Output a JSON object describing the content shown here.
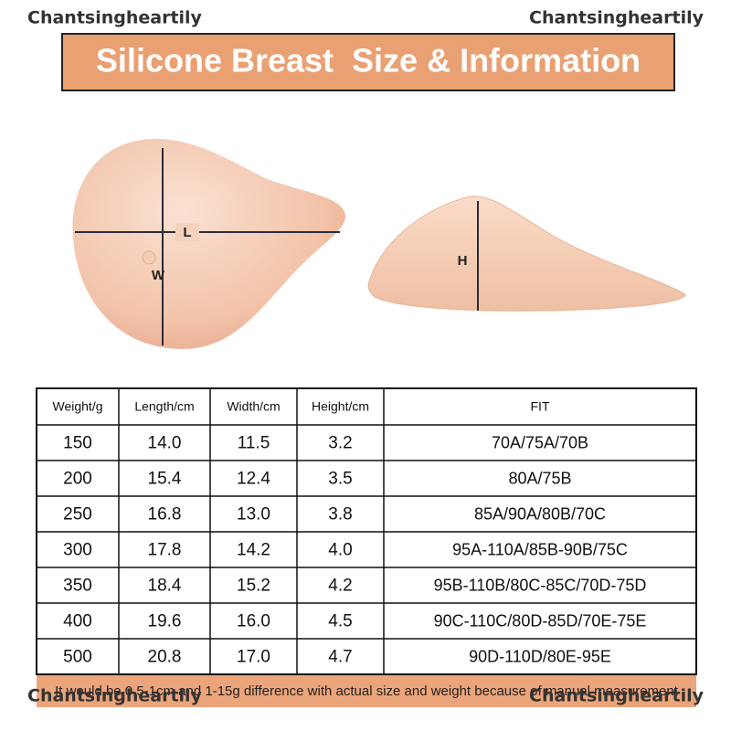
{
  "watermarks": [
    "Chantsingheartily",
    "Chantsingheartily",
    "Chantsingheartily",
    "Chantsingheartily"
  ],
  "header": {
    "title": "Silicone Breast  Size & Information"
  },
  "diagram": {
    "labels": [
      "L",
      "W",
      "H"
    ]
  },
  "table": {
    "columns": [
      "Weight/g",
      "Length/cm",
      "Width/cm",
      "Height/cm",
      "FIT"
    ],
    "rows": [
      [
        "150",
        "14.0",
        "11.5",
        "3.2",
        "70A/75A/70B"
      ],
      [
        "200",
        "15.4",
        "12.4",
        "3.5",
        "80A/75B"
      ],
      [
        "250",
        "16.8",
        "13.0",
        "3.8",
        "85A/90A/80B/70C"
      ],
      [
        "300",
        "17.8",
        "14.2",
        "4.0",
        "95A-110A/85B-90B/75C"
      ],
      [
        "350",
        "18.4",
        "15.2",
        "4.2",
        "95B-110B/80C-85C/70D-75D"
      ],
      [
        "400",
        "19.6",
        "16.0",
        "4.5",
        "90C-110C/80D-85D/70E-75E"
      ],
      [
        "500",
        "20.8",
        "17.0",
        "4.7",
        "90D-110D/80E-95E"
      ]
    ]
  },
  "footer": {
    "note": "It would be 0.5-1cm and 1-15g difference with actual size and weight because of manual measurement"
  }
}
